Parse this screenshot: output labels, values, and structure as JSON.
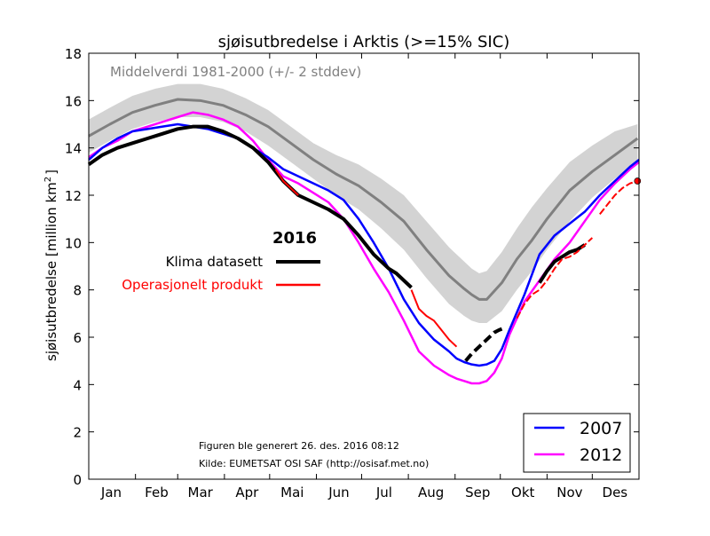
{
  "chart_data": {
    "type": "line",
    "title": "sjøisutbredelse i Arktis (>=15% SIC)",
    "ylabel": "sjøisutbredelse [million km",
    "ylabel_sup": "2",
    "ylabel_end": "]",
    "xlabel": "",
    "ylim": [
      0,
      18
    ],
    "yticks": [
      "0",
      "2",
      "4",
      "6",
      "8",
      "10",
      "12",
      "14",
      "16",
      "18"
    ],
    "xlim": [
      1,
      366
    ],
    "month_labels": [
      "Jan",
      "Feb",
      "Mar",
      "Apr",
      "Mai",
      "Jun",
      "Jul",
      "Aug",
      "Sep",
      "Okt",
      "Nov",
      "Des"
    ],
    "month_label_days": [
      16,
      46,
      75,
      106,
      136,
      167,
      197,
      228,
      259,
      289,
      320,
      350
    ],
    "month_tick_days": [
      1,
      32,
      60,
      91,
      121,
      152,
      182,
      213,
      244,
      274,
      305,
      335
    ],
    "grid": false,
    "colors": {
      "band": "#d3d3d3",
      "mean": "#808080",
      "klima": "#000000",
      "operasjonelt": "#ff0000",
      "y2007": "#0000ff",
      "y2012": "#ff00ff"
    },
    "mean_label": "Middelverdi 1981-2000 (+/- 2 stddev)",
    "legend_2016": {
      "title": "2016",
      "klima_label": "Klima datasett",
      "operasjonelt_label": "Operasjonelt produkt"
    },
    "legend_box": {
      "placement": "bottom-right",
      "items": [
        "2007",
        "2012"
      ]
    },
    "generated_text": "Figuren ble generert 26. des. 2016 08:12",
    "source_text": "Kilde: EUMETSAT OSI SAF (http://osisaf.met.no)",
    "series": [
      {
        "key": "mean",
        "name": "Middelverdi 1981-2000",
        "x": [
          1,
          15,
          30,
          45,
          60,
          75,
          90,
          105,
          120,
          135,
          150,
          165,
          180,
          195,
          210,
          225,
          240,
          250,
          255,
          260,
          265,
          275,
          285,
          295,
          305,
          320,
          335,
          350,
          365
        ],
        "y": [
          14.5,
          15.0,
          15.5,
          15.8,
          16.05,
          16.0,
          15.8,
          15.4,
          14.9,
          14.2,
          13.5,
          12.9,
          12.4,
          11.7,
          10.9,
          9.7,
          8.6,
          8.05,
          7.8,
          7.6,
          7.6,
          8.3,
          9.3,
          10.1,
          11.0,
          12.2,
          13.0,
          13.7,
          14.4
        ]
      },
      {
        "key": "band_upper",
        "name": "+2 stddev",
        "x": [
          1,
          15,
          30,
          45,
          60,
          75,
          90,
          105,
          120,
          135,
          150,
          165,
          180,
          195,
          210,
          225,
          240,
          250,
          255,
          260,
          265,
          275,
          285,
          295,
          305,
          320,
          335,
          350,
          365
        ],
        "y": [
          15.2,
          15.7,
          16.2,
          16.5,
          16.7,
          16.7,
          16.5,
          16.1,
          15.6,
          14.9,
          14.2,
          13.7,
          13.3,
          12.7,
          12.0,
          10.9,
          9.8,
          9.2,
          8.9,
          8.7,
          8.8,
          9.6,
          10.6,
          11.5,
          12.3,
          13.4,
          14.1,
          14.7,
          15.0
        ]
      },
      {
        "key": "band_lower",
        "name": "-2 stddev",
        "x": [
          1,
          15,
          30,
          45,
          60,
          75,
          90,
          105,
          120,
          135,
          150,
          165,
          180,
          195,
          210,
          225,
          240,
          250,
          255,
          260,
          265,
          275,
          285,
          295,
          305,
          320,
          335,
          350,
          365
        ],
        "y": [
          13.8,
          14.3,
          14.8,
          15.1,
          15.3,
          15.3,
          15.1,
          14.7,
          14.1,
          13.4,
          12.7,
          12.0,
          11.4,
          10.6,
          9.7,
          8.5,
          7.4,
          6.9,
          6.7,
          6.6,
          6.6,
          7.1,
          8.0,
          8.8,
          9.7,
          10.9,
          11.9,
          12.7,
          13.4
        ]
      },
      {
        "key": "y2007",
        "name": "2007",
        "x": [
          1,
          10,
          20,
          30,
          40,
          50,
          60,
          70,
          80,
          90,
          100,
          110,
          120,
          130,
          140,
          150,
          160,
          170,
          180,
          190,
          200,
          210,
          220,
          230,
          240,
          245,
          250,
          255,
          260,
          265,
          270,
          275,
          280,
          290,
          300,
          310,
          320,
          330,
          340,
          350,
          360,
          366
        ],
        "y": [
          13.5,
          14.0,
          14.4,
          14.7,
          14.8,
          14.9,
          15.0,
          14.9,
          14.8,
          14.6,
          14.4,
          14.0,
          13.6,
          13.1,
          12.8,
          12.5,
          12.2,
          11.8,
          11.0,
          10.0,
          8.9,
          7.6,
          6.6,
          5.9,
          5.4,
          5.1,
          4.95,
          4.85,
          4.8,
          4.85,
          5.0,
          5.5,
          6.3,
          7.8,
          9.5,
          10.3,
          10.8,
          11.3,
          12.0,
          12.6,
          13.2,
          13.5
        ]
      },
      {
        "key": "y2012",
        "name": "2012",
        "x": [
          1,
          10,
          20,
          30,
          40,
          50,
          60,
          70,
          80,
          90,
          100,
          110,
          120,
          130,
          140,
          150,
          160,
          170,
          180,
          190,
          200,
          210,
          220,
          230,
          240,
          245,
          250,
          255,
          260,
          265,
          270,
          275,
          280,
          290,
          300,
          310,
          320,
          330,
          340,
          350,
          360,
          366
        ],
        "y": [
          13.6,
          14.0,
          14.3,
          14.7,
          14.9,
          15.1,
          15.3,
          15.5,
          15.4,
          15.2,
          14.9,
          14.3,
          13.5,
          12.8,
          12.5,
          12.1,
          11.7,
          11.0,
          10.0,
          8.9,
          7.9,
          6.7,
          5.4,
          4.8,
          4.4,
          4.25,
          4.15,
          4.05,
          4.05,
          4.15,
          4.5,
          5.1,
          6.1,
          7.5,
          8.4,
          9.3,
          10.0,
          10.9,
          11.8,
          12.5,
          13.1,
          13.4
        ]
      },
      {
        "key": "klima",
        "name": "Klima datasett",
        "x": [
          1,
          10,
          20,
          30,
          40,
          50,
          60,
          70,
          80,
          90,
          100,
          110,
          120,
          125,
          130,
          140,
          150,
          160,
          170,
          180,
          190,
          200,
          205,
          210,
          215
        ],
        "y": [
          13.3,
          13.7,
          14.0,
          14.2,
          14.4,
          14.6,
          14.8,
          14.9,
          14.9,
          14.7,
          14.4,
          14.0,
          13.4,
          13.0,
          12.6,
          12.0,
          11.7,
          11.4,
          11.0,
          10.3,
          9.5,
          8.9,
          8.7,
          8.4,
          8.1
        ],
        "x2": [
          251,
          255,
          260,
          265,
          270,
          273,
          277
        ],
        "y2": [
          5.0,
          5.3,
          5.6,
          5.9,
          6.2,
          6.3,
          6.4
        ],
        "x3": [
          300,
          305,
          310,
          315,
          320,
          325,
          330
        ],
        "y3": [
          8.3,
          8.8,
          9.2,
          9.4,
          9.6,
          9.7,
          9.9
        ]
      },
      {
        "key": "operasjonelt",
        "name": "Operasjonelt produkt",
        "x": [
          125,
          130,
          135,
          140
        ],
        "y": [
          13.1,
          12.6,
          12.3,
          12.0
        ],
        "x2": [
          215,
          220,
          225,
          230,
          235,
          240,
          245
        ],
        "y2": [
          8.0,
          7.2,
          6.9,
          6.7,
          6.3,
          5.9,
          5.6
        ],
        "x3": [
          285,
          290,
          295,
          300,
          305,
          310,
          315,
          320,
          325,
          330,
          335
        ],
        "y3": [
          6.8,
          7.4,
          7.8,
          8.0,
          8.4,
          8.9,
          9.3,
          9.4,
          9.6,
          9.9,
          10.2
        ],
        "x4": [
          340,
          345,
          350,
          355,
          360,
          365
        ],
        "y4": [
          11.2,
          11.6,
          12.0,
          12.3,
          12.5,
          12.6
        ]
      }
    ]
  }
}
